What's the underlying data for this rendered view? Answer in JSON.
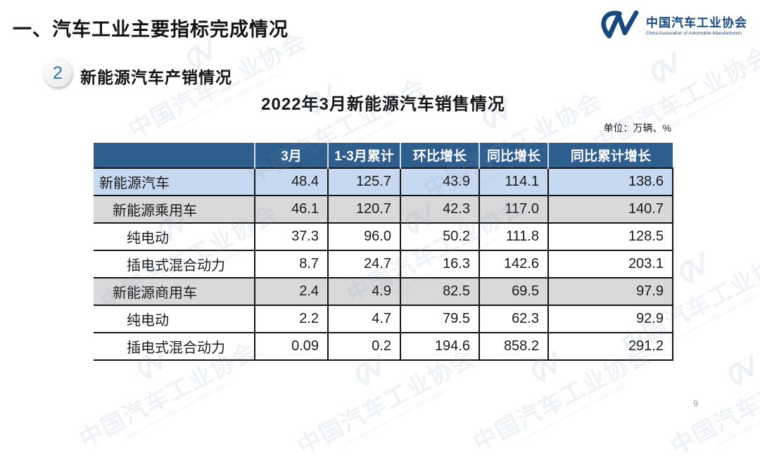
{
  "slide": {
    "title": "一、汽车工业主要指标完成情况",
    "section_number": "2",
    "section_title": "新能源汽车产销情况",
    "unit_label": "单位：万辆、%",
    "page_number": "9"
  },
  "logo": {
    "name": "中国汽车工业协会",
    "subtitle": "China Association of Automobile Manufacturers"
  },
  "watermark": {
    "text": "中国汽车工业协会",
    "subtext": "China Association of Automobile Manufacturers"
  },
  "colors": {
    "header_blue": "#2E5E8E",
    "row_highlight_blue": "#C6D9F0",
    "row_highlight_gray": "#D9D9D9",
    "logo_blue": "#17497E",
    "badge_number_blue": "#2E74B5",
    "border_black": "#141414"
  },
  "chart_data": {
    "type": "table",
    "title": "2022年3月新能源汽车销售情况",
    "unit": "万辆、%",
    "columns": [
      "",
      "3月",
      "1-3月累计",
      "环比增长",
      "同比增长",
      "同比累计增长"
    ],
    "rows": [
      {
        "label": "新能源汽车",
        "indent": 0,
        "style": "highlight-blue",
        "values": [
          "48.4",
          "125.7",
          "43.9",
          "114.1",
          "138.6"
        ]
      },
      {
        "label": "新能源乘用车",
        "indent": 1,
        "style": "highlight-gray",
        "values": [
          "46.1",
          "120.7",
          "42.3",
          "117.0",
          "140.7"
        ]
      },
      {
        "label": "纯电动",
        "indent": 2,
        "style": "plain",
        "values": [
          "37.3",
          "96.0",
          "50.2",
          "111.8",
          "128.5"
        ]
      },
      {
        "label": "插电式混合动力",
        "indent": 2,
        "style": "plain",
        "values": [
          "8.7",
          "24.7",
          "16.3",
          "142.6",
          "203.1"
        ]
      },
      {
        "label": "新能源商用车",
        "indent": 1,
        "style": "highlight-gray",
        "values": [
          "2.4",
          "4.9",
          "82.5",
          "69.5",
          "97.9"
        ]
      },
      {
        "label": "纯电动",
        "indent": 2,
        "style": "plain",
        "values": [
          "2.2",
          "4.7",
          "79.5",
          "62.3",
          "92.9"
        ]
      },
      {
        "label": "插电式混合动力",
        "indent": 2,
        "style": "plain",
        "values": [
          "0.09",
          "0.2",
          "194.6",
          "858.2",
          "291.2"
        ]
      }
    ]
  }
}
